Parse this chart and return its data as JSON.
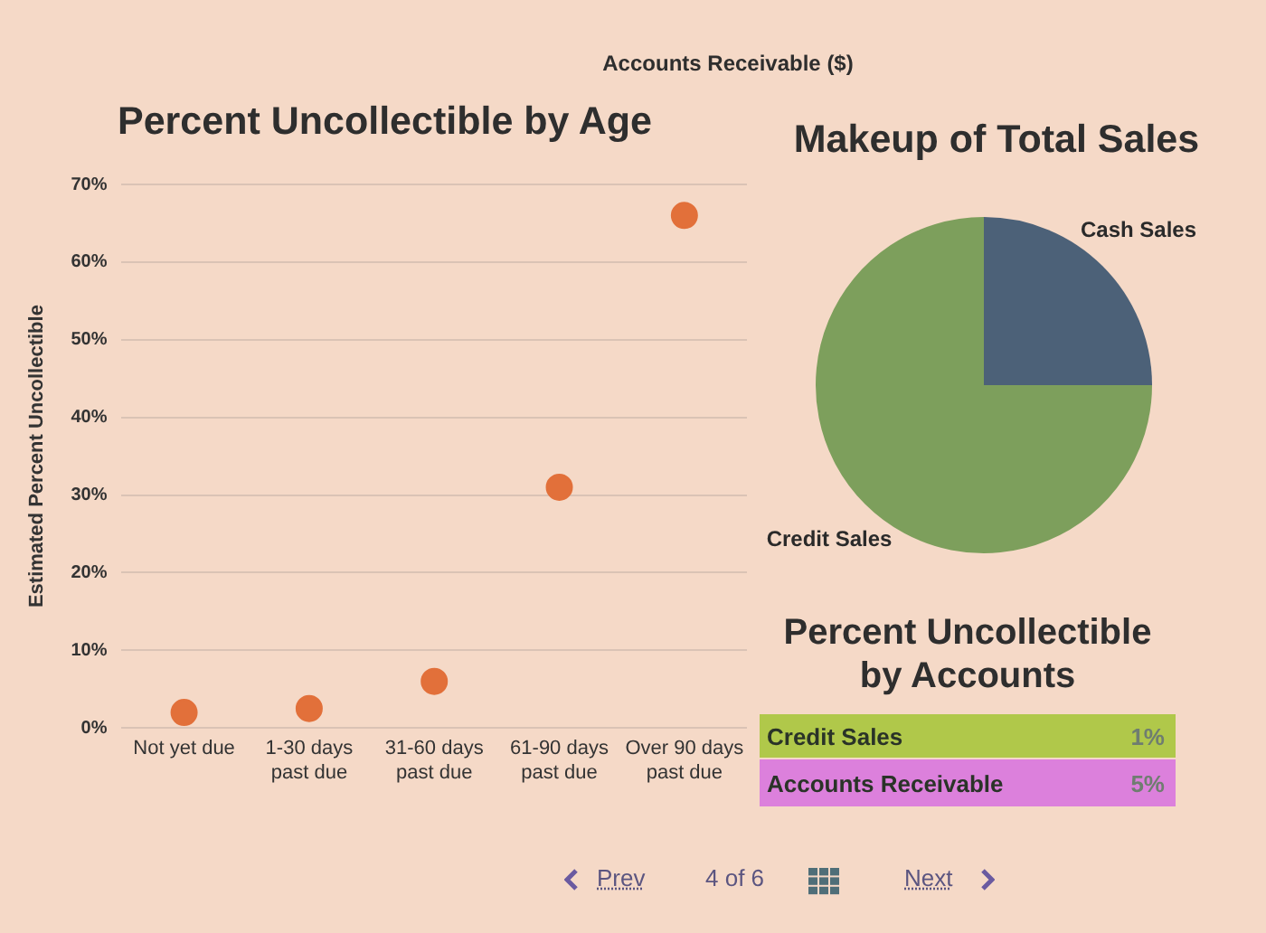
{
  "chart_data": [
    {
      "type": "other",
      "title": "Accounts Receivable ($)"
    },
    {
      "type": "scatter",
      "title": "Percent Uncollectible by Age",
      "ylabel": "Estimated Percent Uncollectible",
      "categories": [
        "Not yet due",
        "1-30 days past due",
        "31-60 days past due",
        "61-90 days past due",
        "Over 90 days past due"
      ],
      "values": [
        2,
        2.5,
        6,
        31,
        66
      ],
      "color": "#e2703a",
      "ylim": [
        0,
        70
      ],
      "yticks": [
        {
          "value": 0,
          "label": "0%"
        },
        {
          "value": 10,
          "label": "10%"
        },
        {
          "value": 20,
          "label": "20%"
        },
        {
          "value": 30,
          "label": "30%"
        },
        {
          "value": 40,
          "label": "40%"
        },
        {
          "value": 50,
          "label": "50%"
        },
        {
          "value": 60,
          "label": "60%"
        },
        {
          "value": 70,
          "label": "70%"
        }
      ],
      "grid": "y",
      "marker": "circle"
    },
    {
      "type": "pie",
      "title": "Makeup of Total Sales",
      "categories": [
        "Cash Sales",
        "Credit Sales"
      ],
      "values": [
        25,
        75
      ],
      "colors": [
        "#4c6178",
        "#7d9f5c"
      ]
    },
    {
      "type": "other",
      "title": "Percent Uncollectible by Accounts",
      "categories": [
        "Credit Sales",
        "Accounts Receivable"
      ],
      "value_labels": [
        "1%",
        "5%"
      ],
      "colors": [
        "#b0c84a",
        "#dc80dc"
      ]
    },
    {
      "type": "other",
      "annotations": [
        "Prev",
        "4 of 6",
        "Next"
      ]
    }
  ]
}
